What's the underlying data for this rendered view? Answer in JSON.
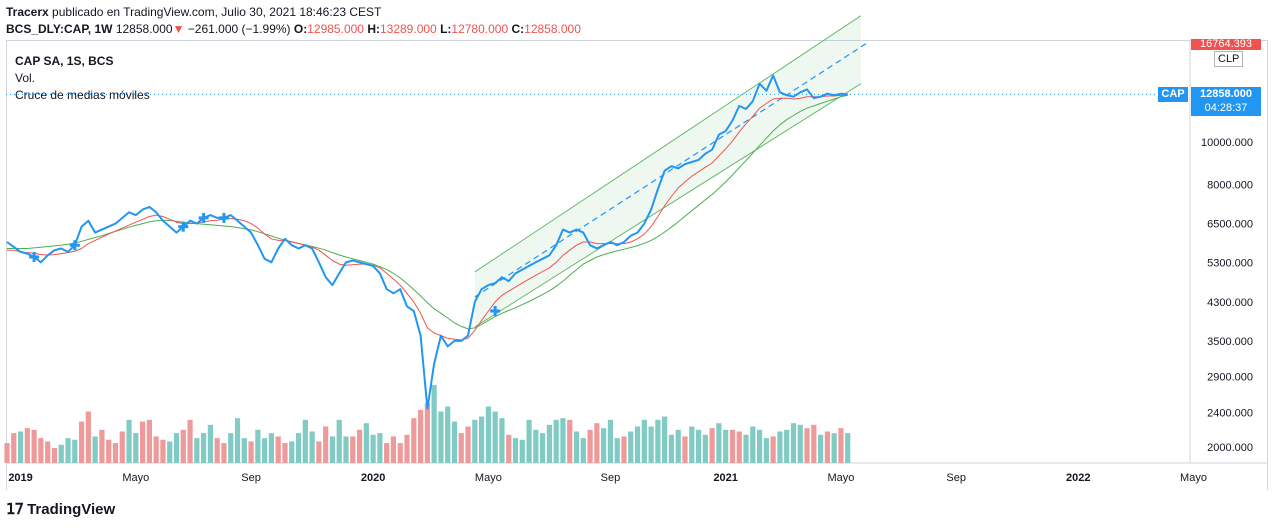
{
  "header": {
    "publisher_user": "Tracerx",
    "publisher_text": "publicado en TradingView.com, Julio 30, 2021 18:46:23 CEST",
    "symbol": "BCS_DLY:CAP, 1W",
    "last": "12858.000",
    "change": "−261.000 (−1.99%)",
    "open_label": "O:",
    "open": "12985.000",
    "high_label": "H:",
    "high": "13289.000",
    "low_label": "L:",
    "low": "12780.000",
    "close_label": "C:",
    "close": "12858.000"
  },
  "legend": {
    "title": "CAP SA, 1S, BCS",
    "vol": "Vol.",
    "indicator": "Cruce de medias móviles"
  },
  "price_scale": {
    "top_label": "16764.393",
    "currency": "CLP",
    "symbol_tag": "CAP",
    "last_price": "12858.000",
    "countdown": "04:28:37"
  },
  "footer": {
    "brand": "TradingView"
  },
  "colors": {
    "price_line": "#2196f3",
    "ma_fast": "#ef5350",
    "ma_slow": "#4caf50",
    "vol_up": "#80cbc4",
    "vol_down": "#ef9a9a",
    "channel": "#66bb6a",
    "label_bg": "#2196f3"
  },
  "chart_data": {
    "type": "line",
    "y_scale": "log",
    "y_ticks": [
      2000,
      2400,
      2900,
      3500,
      4300,
      5300,
      6500,
      8000,
      10000
    ],
    "y_tick_labels": [
      "2000.000",
      "2400.000",
      "2900.000",
      "3500.000",
      "4300.000",
      "5300.000",
      "6500.000",
      "8000.000",
      "10000.000"
    ],
    "x_tick_labels": [
      "2019",
      "Mayo",
      "Sep",
      "2020",
      "Mayo",
      "Sep",
      "2021",
      "Mayo",
      "Sep",
      "2022",
      "Mayo"
    ],
    "x_tick_weeks": [
      2,
      19,
      36,
      54,
      71,
      89,
      106,
      123,
      140,
      158,
      175
    ],
    "series": [
      {
        "values": [
          5900,
          5750,
          5600,
          5550,
          5450,
          5300,
          5500,
          5650,
          5700,
          5600,
          5800,
          6400,
          6600,
          6200,
          6300,
          6400,
          6500,
          6700,
          6900,
          6800,
          7000,
          7100,
          6900,
          6600,
          6400,
          6200,
          6400,
          6600,
          6500,
          6700,
          6800,
          6700,
          6700,
          6800,
          6600,
          6400,
          6200,
          5800,
          5400,
          5300,
          5700,
          6000,
          5800,
          5700,
          5800,
          5700,
          5300,
          4900,
          4700,
          5000,
          5300,
          5350,
          5300,
          5250,
          5200,
          5000,
          4600,
          4500,
          4600,
          4200,
          4100,
          3600,
          2450,
          3100,
          3600,
          3400,
          3500,
          3500,
          3600,
          4300,
          4600,
          4700,
          4750,
          4900,
          4800,
          5000,
          5100,
          5200,
          5300,
          5400,
          5500,
          5800,
          6300,
          6200,
          6300,
          6200,
          5800,
          5700,
          5800,
          5900,
          5800,
          5900,
          6100,
          6200,
          6500,
          7000,
          7800,
          8600,
          8800,
          8700,
          8900,
          9000,
          9100,
          9400,
          9600,
          10400,
          10600,
          11200,
          12100,
          11900,
          12400,
          13600,
          13100,
          14200,
          13000,
          12800,
          12700,
          13000,
          13200,
          12600,
          12700,
          12900,
          12800,
          12900,
          12858
        ]
      },
      {
        "values": [
          5650,
          5650,
          5600,
          5580,
          5560,
          5520,
          5510,
          5520,
          5550,
          5580,
          5620,
          5700,
          5850,
          5950,
          6050,
          6150,
          6250,
          6350,
          6450,
          6550,
          6650,
          6750,
          6800,
          6750,
          6650,
          6550,
          6500,
          6500,
          6520,
          6560,
          6600,
          6620,
          6650,
          6680,
          6650,
          6600,
          6500,
          6350,
          6150,
          6000,
          5950,
          5950,
          5900,
          5850,
          5800,
          5750,
          5650,
          5500,
          5350,
          5250,
          5220,
          5230,
          5250,
          5250,
          5220,
          5150,
          5000,
          4850,
          4700,
          4500,
          4300,
          4050,
          3750,
          3650,
          3600,
          3550,
          3530,
          3520,
          3550,
          3700,
          3900,
          4100,
          4300,
          4450,
          4550,
          4650,
          4750,
          4850,
          4950,
          5050,
          5150,
          5300,
          5500,
          5650,
          5800,
          5900,
          5900,
          5850,
          5850,
          5850,
          5850,
          5850,
          5900,
          6000,
          6150,
          6400,
          6750,
          7150,
          7500,
          7850,
          8100,
          8350,
          8550,
          8750,
          8950,
          9300,
          9650,
          10050,
          10550,
          11000,
          11450,
          11950,
          12250,
          12550,
          12600,
          12600,
          12550,
          12600,
          12700,
          12700,
          12700,
          12750,
          12750,
          12800,
          12800
        ]
      },
      {
        "values": [
          5700,
          5700,
          5700,
          5700,
          5720,
          5740,
          5760,
          5780,
          5800,
          5830,
          5870,
          5920,
          5980,
          6040,
          6100,
          6170,
          6240,
          6310,
          6380,
          6440,
          6500,
          6560,
          6600,
          6620,
          6610,
          6580,
          6550,
          6520,
          6500,
          6480,
          6460,
          6440,
          6420,
          6400,
          6370,
          6330,
          6290,
          6230,
          6160,
          6090,
          6020,
          5960,
          5910,
          5860,
          5810,
          5760,
          5710,
          5650,
          5580,
          5510,
          5450,
          5400,
          5350,
          5300,
          5250,
          5180,
          5100,
          5000,
          4880,
          4740,
          4590,
          4440,
          4280,
          4150,
          4050,
          3950,
          3850,
          3780,
          3730,
          3750,
          3820,
          3900,
          3980,
          4050,
          4110,
          4170,
          4240,
          4310,
          4390,
          4470,
          4560,
          4670,
          4800,
          4950,
          5100,
          5250,
          5350,
          5450,
          5520,
          5580,
          5630,
          5680,
          5730,
          5790,
          5860,
          5950,
          6070,
          6220,
          6380,
          6560,
          6760,
          6960,
          7160,
          7370,
          7580,
          7830,
          8100,
          8400,
          8730,
          9070,
          9430,
          9820,
          10200,
          10600,
          10950,
          11250,
          11500,
          11750,
          11950,
          12100,
          12250,
          12400,
          12550,
          12700,
          12800
        ]
      }
    ],
    "volume_up": [
      0,
      0,
      1,
      0,
      0,
      0,
      0,
      0,
      1,
      1,
      1,
      0,
      0,
      1,
      0,
      0,
      0,
      0,
      1,
      1,
      0,
      0,
      0,
      0,
      1,
      1,
      0,
      0,
      1,
      1,
      1,
      0,
      0,
      1,
      1,
      1,
      0,
      1,
      1,
      1,
      0,
      0,
      1,
      1,
      1,
      1,
      0,
      0,
      1,
      1,
      1,
      0,
      0,
      1,
      1,
      1,
      0,
      0,
      0,
      0,
      0,
      0,
      0,
      1,
      1,
      1,
      1,
      0,
      0,
      1,
      1,
      1,
      1,
      1,
      0,
      1,
      1,
      1,
      1,
      1,
      1,
      1,
      1,
      0,
      1,
      1,
      0,
      0,
      1,
      1,
      1,
      0,
      1,
      1,
      1,
      1,
      1,
      1,
      1,
      1,
      0,
      1,
      1,
      1,
      0,
      1,
      1,
      0,
      0,
      1,
      1,
      1,
      1,
      0,
      1,
      1,
      1,
      1,
      0,
      0,
      1,
      0,
      1,
      0,
      1
    ],
    "volume": [
      120,
      180,
      190,
      210,
      200,
      150,
      130,
      90,
      110,
      150,
      140,
      250,
      310,
      160,
      200,
      140,
      120,
      190,
      260,
      180,
      250,
      260,
      160,
      140,
      130,
      180,
      200,
      260,
      150,
      180,
      230,
      150,
      120,
      180,
      270,
      150,
      130,
      200,
      150,
      180,
      160,
      120,
      130,
      180,
      260,
      190,
      130,
      220,
      160,
      260,
      160,
      160,
      200,
      240,
      170,
      180,
      120,
      160,
      120,
      170,
      270,
      320,
      360,
      470,
      310,
      340,
      250,
      180,
      220,
      260,
      280,
      340,
      310,
      270,
      170,
      150,
      140,
      260,
      200,
      180,
      230,
      260,
      270,
      260,
      190,
      150,
      200,
      240,
      210,
      260,
      150,
      160,
      190,
      220,
      260,
      220,
      260,
      280,
      170,
      200,
      160,
      220,
      200,
      170,
      210,
      240,
      200,
      200,
      190,
      170,
      220,
      200,
      150,
      160,
      190,
      200,
      240,
      230,
      210,
      230,
      170,
      190,
      180,
      210,
      180
    ]
  }
}
